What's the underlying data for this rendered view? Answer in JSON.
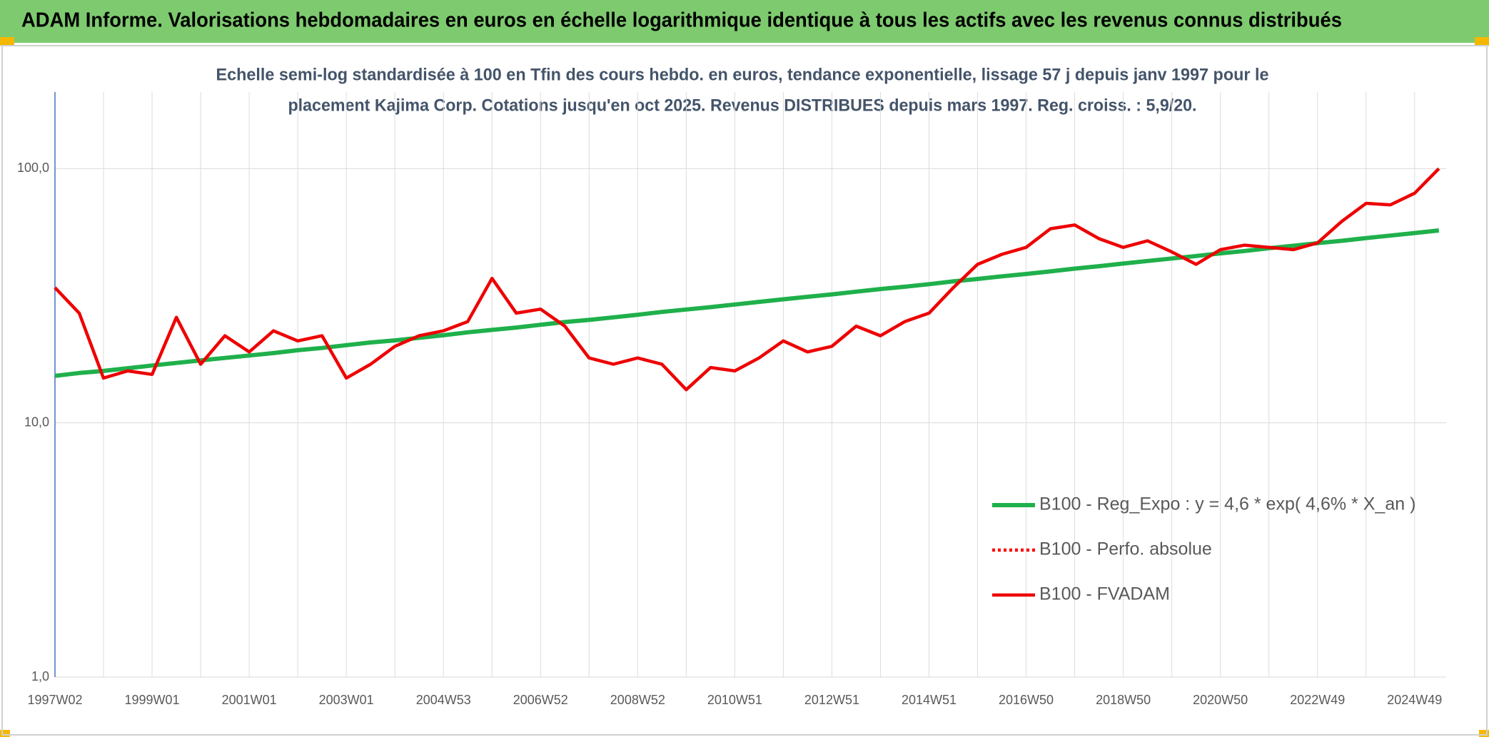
{
  "header": {
    "title": "ADAM Informe. Valorisations hebdomadaires en euros en échelle logarithmique identique à tous les actifs avec les revenus connus distribués"
  },
  "chart_data": {
    "type": "line",
    "title_lines": [
      "Echelle semi-log standardisée à 100 en Tfin des cours hebdo. en euros, tendance exponentielle, lissage 57 j depuis janv 1997 pour le",
      "placement Kajima Corp. Cotations jusqu'en oct 2025. Revenus DISTRIBUES depuis mars 1997. Reg. croiss. : 5,9/20."
    ],
    "categories": [
      "1997W02",
      null,
      null,
      null,
      "1999W01",
      null,
      null,
      null,
      "2001W01",
      null,
      null,
      null,
      "2003W01",
      null,
      null,
      null,
      "2004W53",
      null,
      null,
      null,
      "2006W52",
      null,
      null,
      null,
      "2008W52",
      null,
      null,
      null,
      "2010W51",
      null,
      null,
      null,
      "2012W51",
      null,
      null,
      null,
      "2014W51",
      null,
      null,
      null,
      "2016W50",
      null,
      null,
      null,
      "2018W50",
      null,
      null,
      null,
      "2020W50",
      null,
      null,
      null,
      "2022W49",
      null,
      null,
      null,
      "2024W49",
      null
    ],
    "log_scale": true,
    "ylim": [
      1,
      200
    ],
    "yticks": [
      {
        "value": 1,
        "label": "1,0"
      },
      {
        "value": 10,
        "label": "10,0"
      },
      {
        "value": 100,
        "label": "100,0"
      }
    ],
    "grid": true,
    "legend": "right",
    "series": [
      {
        "name": "B100 - Reg_Expo : y = 4,6 * exp( 4,6% *  X_an )",
        "color": "#1fb04b",
        "style": "solid",
        "values": [
          15.3,
          15.7,
          16.0,
          16.4,
          16.8,
          17.2,
          17.6,
          18.0,
          18.4,
          18.8,
          19.3,
          19.7,
          20.2,
          20.7,
          21.1,
          21.6,
          22.1,
          22.7,
          23.2,
          23.7,
          24.3,
          24.9,
          25.4,
          26.0,
          26.6,
          27.3,
          27.9,
          28.5,
          29.2,
          29.9,
          30.6,
          31.3,
          32.0,
          32.8,
          33.6,
          34.3,
          35.1,
          36.0,
          36.8,
          37.7,
          38.5,
          39.4,
          40.4,
          41.3,
          42.3,
          43.3,
          44.3,
          45.3,
          46.4,
          47.4,
          48.6,
          49.7,
          50.9,
          52.0,
          53.3,
          54.5,
          55.8,
          57.1
        ]
      },
      {
        "name": "B100 - Perfo. absolue",
        "color": "#ff0000",
        "style": "dotted",
        "values": [
          null,
          null,
          null,
          null,
          null,
          null,
          null,
          null,
          null,
          null,
          null,
          null,
          null,
          null,
          null,
          null,
          null,
          null,
          null,
          null,
          null,
          null,
          null,
          null,
          null,
          null,
          null,
          null,
          null,
          null,
          null,
          null,
          null,
          null,
          null,
          null,
          null,
          null,
          null,
          null,
          null,
          null,
          null,
          null,
          null,
          null,
          null,
          null,
          null,
          null,
          null,
          null,
          null,
          null,
          null,
          null,
          null,
          null
        ]
      },
      {
        "name": "B100 - FVADAM",
        "color": "#ee0000",
        "style": "solid",
        "values": [
          34,
          27,
          15,
          16,
          15.5,
          26,
          17,
          22,
          19,
          23,
          21,
          22,
          15,
          17,
          20,
          22,
          23,
          25,
          37,
          27,
          28,
          24,
          18,
          17,
          18,
          17,
          13.5,
          16.5,
          16,
          18,
          21,
          19,
          20,
          24,
          22,
          25,
          27,
          34,
          42,
          46,
          49,
          58,
          60,
          53,
          49,
          52,
          47,
          42,
          48,
          50,
          49,
          48,
          51,
          62,
          73,
          72,
          80,
          100
        ]
      }
    ]
  }
}
